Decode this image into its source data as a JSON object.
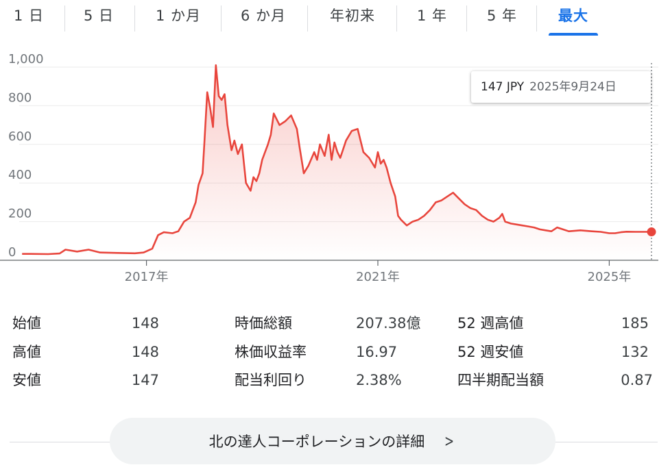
{
  "range_tabs": [
    {
      "label": "1 日",
      "active": false
    },
    {
      "label": "5 日",
      "active": false
    },
    {
      "label": "1 か月",
      "active": false
    },
    {
      "label": "6 か月",
      "active": false
    },
    {
      "label": "年初来",
      "active": false
    },
    {
      "label": "1 年",
      "active": false
    },
    {
      "label": "5 年",
      "active": false
    },
    {
      "label": "最大",
      "active": true
    }
  ],
  "tooltip": {
    "price": "147 JPY",
    "date": "2025年9月24日"
  },
  "colors": {
    "line": "#e8453c",
    "accent": "#1a73e8"
  },
  "chart_data": {
    "type": "area",
    "ylim": [
      0,
      1000
    ],
    "y_ticks": [
      "0",
      "200",
      "400",
      "600",
      "800",
      "1,000"
    ],
    "x_ticks": [
      {
        "label": "2017年",
        "x": 2017.0
      },
      {
        "label": "2021年",
        "x": 2021.0
      },
      {
        "label": "2025年",
        "x": 2025.0
      }
    ],
    "xlim": [
      2014.8,
      2025.73
    ],
    "grid": true,
    "series": [
      {
        "x": [
          2014.85,
          2015.0,
          2015.3,
          2015.5,
          2015.6,
          2015.8,
          2016.0,
          2016.2,
          2016.5,
          2016.8,
          2016.95,
          2017.1,
          2017.2,
          2017.3,
          2017.45,
          2017.55,
          2017.65,
          2017.75,
          2017.85,
          2017.9,
          2017.97,
          2018.0,
          2018.05,
          2018.1,
          2018.15,
          2018.2,
          2018.25,
          2018.3,
          2018.35,
          2018.4,
          2018.47,
          2018.52,
          2018.58,
          2018.65,
          2018.72,
          2018.8,
          2018.85,
          2018.9,
          2018.95,
          2019.0,
          2019.05,
          2019.1,
          2019.15,
          2019.2,
          2019.3,
          2019.4,
          2019.5,
          2019.6,
          2019.65,
          2019.72,
          2019.8,
          2019.9,
          2019.95,
          2020.0,
          2020.08,
          2020.15,
          2020.2,
          2020.25,
          2020.3,
          2020.35,
          2020.45,
          2020.55,
          2020.65,
          2020.75,
          2020.85,
          2020.95,
          2021.0,
          2021.05,
          2021.1,
          2021.15,
          2021.22,
          2021.3,
          2021.35,
          2021.4,
          2021.5,
          2021.6,
          2021.7,
          2021.8,
          2021.9,
          2022.0,
          2022.1,
          2022.2,
          2022.3,
          2022.4,
          2022.5,
          2022.6,
          2022.7,
          2022.8,
          2022.9,
          2023.0,
          2023.1,
          2023.15,
          2023.2,
          2023.3,
          2023.4,
          2023.5,
          2023.6,
          2023.7,
          2023.8,
          2023.9,
          2024.0,
          2024.1,
          2024.2,
          2024.3,
          2024.5,
          2024.7,
          2024.85,
          2025.0,
          2025.1,
          2025.2,
          2025.3,
          2025.45,
          2025.6,
          2025.73
        ],
        "y": [
          33,
          33,
          32,
          35,
          55,
          45,
          55,
          40,
          38,
          36,
          40,
          60,
          130,
          145,
          140,
          150,
          200,
          220,
          300,
          390,
          450,
          600,
          870,
          790,
          690,
          1010,
          850,
          830,
          860,
          700,
          570,
          620,
          550,
          600,
          400,
          360,
          430,
          410,
          450,
          520,
          560,
          600,
          650,
          760,
          700,
          720,
          750,
          680,
          580,
          450,
          490,
          560,
          520,
          600,
          540,
          650,
          520,
          610,
          560,
          530,
          620,
          670,
          680,
          560,
          530,
          480,
          560,
          500,
          520,
          480,
          400,
          330,
          230,
          210,
          180,
          200,
          210,
          230,
          260,
          300,
          310,
          330,
          350,
          320,
          290,
          270,
          260,
          230,
          210,
          200,
          220,
          240,
          200,
          190,
          185,
          180,
          175,
          170,
          160,
          155,
          150,
          170,
          160,
          150,
          155,
          150,
          147,
          140,
          140,
          145,
          148,
          147,
          147,
          147
        ]
      }
    ]
  },
  "stats": {
    "col1": [
      {
        "label": "始値",
        "value": "148"
      },
      {
        "label": "高値",
        "value": "148"
      },
      {
        "label": "安値",
        "value": "147"
      }
    ],
    "col2": [
      {
        "label": "時価総額",
        "value": "207.38億"
      },
      {
        "label": "株価収益率",
        "value": "16.97"
      },
      {
        "label": "配当利回り",
        "value": "2.38%"
      }
    ],
    "col3": [
      {
        "label": "52 週高値",
        "value": "185"
      },
      {
        "label": "52 週安値",
        "value": "132"
      },
      {
        "label": "四半期配当額",
        "value": "0.87"
      }
    ]
  },
  "details_button": {
    "label": "北の達人コーポレーションの詳細",
    "icon": "chevron-right-icon"
  }
}
